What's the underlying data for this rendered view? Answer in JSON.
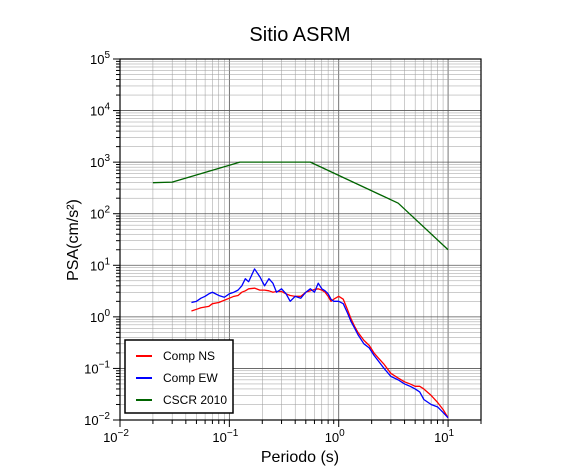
{
  "chart_data": {
    "type": "line",
    "title": "Sitio ASRM",
    "xlabel": "Periodo (s)",
    "ylabel": "PSA(cm/s²)",
    "x_scale": "log",
    "y_scale": "log",
    "xlim": [
      0.01,
      20
    ],
    "ylim": [
      0.01,
      100000
    ],
    "grid": true,
    "legend_position": "bottom-left",
    "x_tick_labels": [
      {
        "base": "10",
        "exp": "−2"
      },
      {
        "base": "10",
        "exp": "−1"
      },
      {
        "base": "10",
        "exp": "0"
      },
      {
        "base": "10",
        "exp": "1"
      }
    ],
    "y_tick_labels": [
      {
        "base": "10",
        "exp": "−2"
      },
      {
        "base": "10",
        "exp": "−1"
      },
      {
        "base": "10",
        "exp": "0"
      },
      {
        "base": "10",
        "exp": "1"
      },
      {
        "base": "10",
        "exp": "2"
      },
      {
        "base": "10",
        "exp": "3"
      },
      {
        "base": "10",
        "exp": "4"
      },
      {
        "base": "10",
        "exp": "5"
      }
    ],
    "series": [
      {
        "name": "Comp NS",
        "color": "#ff0000",
        "x": [
          0.045,
          0.05,
          0.055,
          0.06,
          0.065,
          0.07,
          0.08,
          0.09,
          0.1,
          0.11,
          0.12,
          0.13,
          0.14,
          0.15,
          0.17,
          0.19,
          0.21,
          0.23,
          0.25,
          0.27,
          0.3,
          0.33,
          0.36,
          0.4,
          0.45,
          0.5,
          0.55,
          0.6,
          0.65,
          0.7,
          0.75,
          0.8,
          0.85,
          0.9,
          1.0,
          1.1,
          1.2,
          1.3,
          1.4,
          1.5,
          1.7,
          1.9,
          2.1,
          2.3,
          2.6,
          3.0,
          3.5,
          4.0,
          4.5,
          5.0,
          5.5,
          6.0,
          7.0,
          8.0,
          9.0,
          10.0
        ],
        "y": [
          1.3,
          1.4,
          1.5,
          1.55,
          1.6,
          1.8,
          1.9,
          2.1,
          2.3,
          2.5,
          2.6,
          3.0,
          3.2,
          3.5,
          3.6,
          3.3,
          3.3,
          3.2,
          3.0,
          3.1,
          3.1,
          2.8,
          2.6,
          2.5,
          2.5,
          3.0,
          3.2,
          3.4,
          3.5,
          3.3,
          3.0,
          2.5,
          2.0,
          2.2,
          2.5,
          2.2,
          1.4,
          0.9,
          0.65,
          0.5,
          0.35,
          0.28,
          0.2,
          0.16,
          0.12,
          0.08,
          0.065,
          0.055,
          0.05,
          0.045,
          0.045,
          0.04,
          0.03,
          0.022,
          0.016,
          0.011
        ]
      },
      {
        "name": "Comp EW",
        "color": "#0000ff",
        "x": [
          0.045,
          0.05,
          0.055,
          0.06,
          0.065,
          0.07,
          0.08,
          0.09,
          0.1,
          0.11,
          0.12,
          0.13,
          0.14,
          0.15,
          0.17,
          0.19,
          0.21,
          0.23,
          0.25,
          0.27,
          0.3,
          0.33,
          0.36,
          0.4,
          0.45,
          0.5,
          0.55,
          0.6,
          0.65,
          0.7,
          0.75,
          0.8,
          0.85,
          0.9,
          1.0,
          1.1,
          1.2,
          1.3,
          1.4,
          1.5,
          1.7,
          1.9,
          2.1,
          2.3,
          2.6,
          3.0,
          3.5,
          4.0,
          4.5,
          5.0,
          5.5,
          6.0,
          7.0,
          8.0,
          9.0,
          10.0
        ],
        "y": [
          1.9,
          2.0,
          2.3,
          2.5,
          2.8,
          3.0,
          2.6,
          2.4,
          2.8,
          3.0,
          3.3,
          4.0,
          5.5,
          4.8,
          8.5,
          6.0,
          4.0,
          5.5,
          4.5,
          3.0,
          3.5,
          2.8,
          2.0,
          2.5,
          2.3,
          3.0,
          3.5,
          3.0,
          4.5,
          3.5,
          3.2,
          2.8,
          2.2,
          2.0,
          2.0,
          1.8,
          1.2,
          0.8,
          0.6,
          0.45,
          0.3,
          0.25,
          0.18,
          0.14,
          0.1,
          0.07,
          0.06,
          0.05,
          0.045,
          0.04,
          0.035,
          0.025,
          0.02,
          0.018,
          0.014,
          0.011
        ]
      },
      {
        "name": "CSCR 2010",
        "color": "#006400",
        "x": [
          0.02,
          0.03,
          0.125,
          0.55,
          3.5,
          10.0
        ],
        "y": [
          400,
          410,
          1000,
          1000,
          160,
          20
        ]
      }
    ]
  }
}
